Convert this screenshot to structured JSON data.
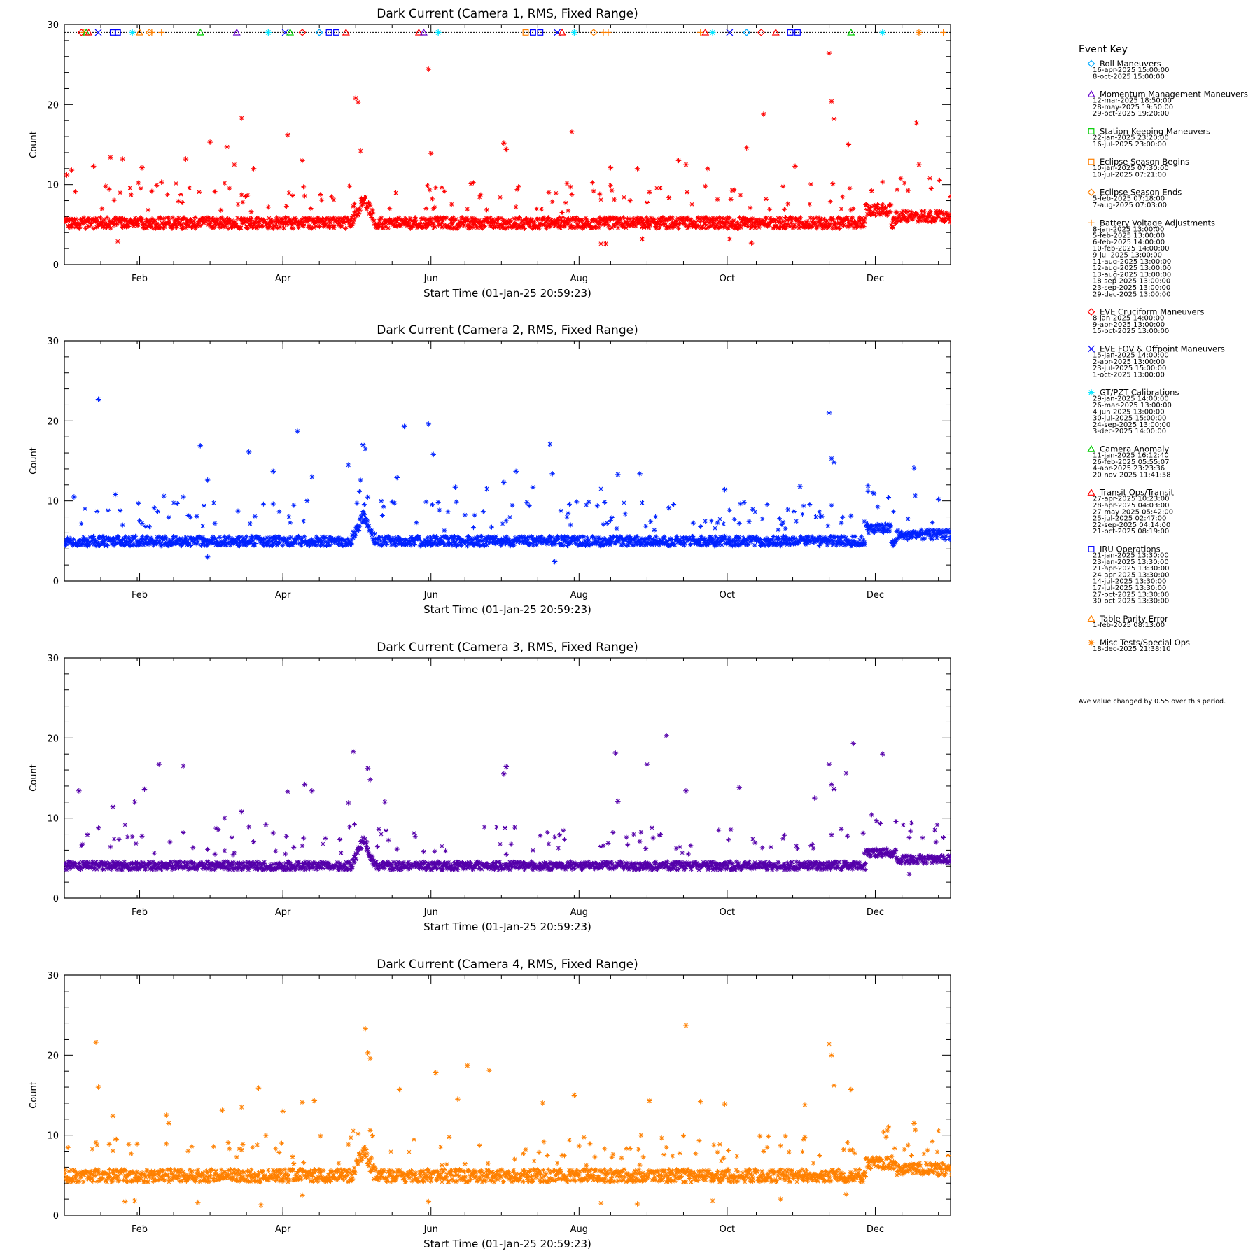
{
  "chart_data": {
    "type": "scatter",
    "x_range_days": [
      0,
      365
    ],
    "ylim": [
      0,
      30
    ],
    "yticks": [
      0,
      10,
      20,
      30
    ],
    "xticks": [
      {
        "label": "Feb",
        "day": 31
      },
      {
        "label": "Apr",
        "day": 90
      },
      {
        "label": "Jun",
        "day": 151
      },
      {
        "label": "Aug",
        "day": 212
      },
      {
        "label": "Oct",
        "day": 273
      },
      {
        "label": "Dec",
        "day": 334
      }
    ],
    "panels": [
      {
        "title": "Dark Current (Camera 1, RMS, Fixed Range)",
        "xlabel": "Start Time (01-Jan-25 20:59:23)",
        "ylabel": "Count",
        "color": "#ff0000",
        "baseline": 5.0,
        "spread": 0.7,
        "outliers": [
          [
            1,
            11.2
          ],
          [
            3,
            11.8
          ],
          [
            12,
            12.3
          ],
          [
            17,
            9.8
          ],
          [
            19,
            13.4
          ],
          [
            24,
            13.2
          ],
          [
            32,
            12.1
          ],
          [
            40,
            10.3
          ],
          [
            50,
            13.2
          ],
          [
            60,
            15.3
          ],
          [
            67,
            14.7
          ],
          [
            70,
            12.5
          ],
          [
            73,
            18.3
          ],
          [
            78,
            12.0
          ],
          [
            92,
            16.2
          ],
          [
            98,
            13.0
          ],
          [
            120,
            20.8
          ],
          [
            121,
            20.3
          ],
          [
            122,
            14.2
          ],
          [
            150,
            24.4
          ],
          [
            151,
            13.9
          ],
          [
            181,
            15.2
          ],
          [
            182,
            14.4
          ],
          [
            209,
            16.6
          ],
          [
            225,
            12.1
          ],
          [
            236,
            12.0
          ],
          [
            253,
            13.0
          ],
          [
            256,
            12.5
          ],
          [
            265,
            12.0
          ],
          [
            281,
            14.6
          ],
          [
            288,
            18.8
          ],
          [
            301,
            12.3
          ],
          [
            315,
            26.4
          ],
          [
            316,
            20.4
          ],
          [
            317,
            18.2
          ],
          [
            323,
            15.0
          ],
          [
            351,
            17.7
          ],
          [
            352,
            12.5
          ]
        ],
        "dips": [
          [
            22,
            2.9
          ],
          [
            221,
            2.6
          ],
          [
            223,
            2.6
          ],
          [
            238,
            3.2
          ],
          [
            274,
            3.2
          ],
          [
            283,
            2.7
          ]
        ],
        "bump_days": [
          118,
          128
        ],
        "late_bump_days": [
          330,
          340
        ]
      },
      {
        "title": "Dark Current (Camera 2, RMS, Fixed Range)",
        "xlabel": "Start Time (01-Jan-25 20:59:23)",
        "ylabel": "Count",
        "color": "#0022ff",
        "baseline": 4.8,
        "spread": 0.6,
        "outliers": [
          [
            4,
            10.5
          ],
          [
            14,
            22.7
          ],
          [
            21,
            10.8
          ],
          [
            41,
            10.6
          ],
          [
            49,
            10.5
          ],
          [
            56,
            16.9
          ],
          [
            59,
            12.6
          ],
          [
            76,
            16.1
          ],
          [
            86,
            13.7
          ],
          [
            96,
            18.7
          ],
          [
            102,
            13.0
          ],
          [
            117,
            14.5
          ],
          [
            123,
            17.0
          ],
          [
            124,
            16.5
          ],
          [
            137,
            12.9
          ],
          [
            140,
            19.3
          ],
          [
            150,
            19.6
          ],
          [
            152,
            15.8
          ],
          [
            161,
            11.7
          ],
          [
            174,
            11.5
          ],
          [
            181,
            12.3
          ],
          [
            186,
            13.7
          ],
          [
            193,
            11.7
          ],
          [
            200,
            17.1
          ],
          [
            201,
            13.4
          ],
          [
            221,
            11.5
          ],
          [
            228,
            13.3
          ],
          [
            237,
            13.4
          ],
          [
            272,
            11.4
          ],
          [
            303,
            11.8
          ],
          [
            315,
            21.0
          ],
          [
            316,
            15.3
          ],
          [
            317,
            14.8
          ],
          [
            331,
            11.9
          ],
          [
            350,
            14.1
          ],
          [
            360,
            10.2
          ]
        ],
        "dips": [
          [
            59,
            3.0
          ],
          [
            202,
            2.4
          ]
        ],
        "bump_days": [
          118,
          128
        ],
        "late_bump_days": [
          330,
          340
        ]
      },
      {
        "title": "Dark Current (Camera 3, RMS, Fixed Range)",
        "xlabel": "Start Time (01-Jan-25 20:59:23)",
        "ylabel": "Count",
        "color": "#5500aa",
        "baseline": 3.9,
        "spread": 0.5,
        "outliers": [
          [
            6,
            13.4
          ],
          [
            20,
            11.4
          ],
          [
            29,
            12.0
          ],
          [
            33,
            13.6
          ],
          [
            39,
            16.7
          ],
          [
            49,
            16.5
          ],
          [
            66,
            10.0
          ],
          [
            73,
            10.8
          ],
          [
            83,
            9.2
          ],
          [
            92,
            13.3
          ],
          [
            99,
            14.2
          ],
          [
            102,
            13.4
          ],
          [
            117,
            11.9
          ],
          [
            119,
            18.3
          ],
          [
            125,
            16.2
          ],
          [
            126,
            14.8
          ],
          [
            132,
            12.0
          ],
          [
            181,
            15.5
          ],
          [
            182,
            16.4
          ],
          [
            227,
            18.1
          ],
          [
            228,
            12.1
          ],
          [
            240,
            16.7
          ],
          [
            248,
            20.3
          ],
          [
            256,
            13.4
          ],
          [
            278,
            13.8
          ],
          [
            309,
            12.5
          ],
          [
            315,
            16.7
          ],
          [
            316,
            14.2
          ],
          [
            317,
            13.6
          ],
          [
            322,
            15.6
          ],
          [
            325,
            19.3
          ],
          [
            337,
            18.0
          ]
        ],
        "dips": [
          [
            348,
            3.0
          ]
        ],
        "bump_days": [
          118,
          128
        ],
        "late_bump_days": [
          330,
          342
        ]
      },
      {
        "title": "Dark Current (Camera 4, RMS, Fixed Range)",
        "xlabel": "Start Time (01-Jan-25 20:59:23)",
        "ylabel": "Count",
        "color": "#ff8000",
        "baseline": 4.7,
        "spread": 0.8,
        "outliers": [
          [
            13,
            21.6
          ],
          [
            14,
            16.0
          ],
          [
            20,
            12.4
          ],
          [
            42,
            12.5
          ],
          [
            43,
            11.5
          ],
          [
            65,
            13.1
          ],
          [
            73,
            13.5
          ],
          [
            80,
            15.9
          ],
          [
            90,
            13.0
          ],
          [
            98,
            14.1
          ],
          [
            103,
            14.3
          ],
          [
            124,
            23.3
          ],
          [
            125,
            20.3
          ],
          [
            126,
            19.6
          ],
          [
            138,
            15.7
          ],
          [
            153,
            17.8
          ],
          [
            162,
            14.5
          ],
          [
            166,
            18.7
          ],
          [
            175,
            18.1
          ],
          [
            197,
            14.0
          ],
          [
            210,
            15.0
          ],
          [
            241,
            14.3
          ],
          [
            256,
            23.7
          ],
          [
            262,
            14.2
          ],
          [
            272,
            13.9
          ],
          [
            305,
            13.8
          ],
          [
            315,
            21.4
          ],
          [
            316,
            20.0
          ],
          [
            317,
            16.2
          ],
          [
            324,
            15.7
          ],
          [
            350,
            11.5
          ]
        ],
        "dips": [
          [
            25,
            1.7
          ],
          [
            29,
            1.8
          ],
          [
            55,
            1.6
          ],
          [
            81,
            1.3
          ],
          [
            98,
            2.5
          ],
          [
            150,
            1.7
          ],
          [
            221,
            1.5
          ],
          [
            236,
            1.4
          ],
          [
            267,
            1.8
          ],
          [
            295,
            2.0
          ],
          [
            322,
            2.6
          ]
        ],
        "bump_days": [
          118,
          128
        ],
        "late_bump_days": [
          330,
          342
        ]
      }
    ],
    "events_row_y": 29,
    "events_on_top_panel": [
      {
        "day": 7,
        "sym": "diamond",
        "color": "#ff0000"
      },
      {
        "day": 8,
        "sym": "cross",
        "color": "#ff8000"
      },
      {
        "day": 9,
        "sym": "triangle",
        "color": "#00cc00"
      },
      {
        "day": 10,
        "sym": "triangle",
        "color": "#ff0000"
      },
      {
        "day": 14,
        "sym": "x",
        "color": "#0000ff"
      },
      {
        "day": 20,
        "sym": "square",
        "color": "#0000ff"
      },
      {
        "day": 22,
        "sym": "square",
        "color": "#0000ff"
      },
      {
        "day": 28,
        "sym": "asterisk",
        "color": "#00e5ff"
      },
      {
        "day": 31,
        "sym": "triangle",
        "color": "#ff8000"
      },
      {
        "day": 35,
        "sym": "diamond",
        "color": "#ff8000"
      },
      {
        "day": 36,
        "sym": "cross",
        "color": "#ff8000"
      },
      {
        "day": 40,
        "sym": "cross",
        "color": "#ff8000"
      },
      {
        "day": 56,
        "sym": "triangle",
        "color": "#00cc00"
      },
      {
        "day": 71,
        "sym": "triangle",
        "color": "#6600cc"
      },
      {
        "day": 84,
        "sym": "asterisk",
        "color": "#00e5ff"
      },
      {
        "day": 91,
        "sym": "x",
        "color": "#0000ff"
      },
      {
        "day": 93,
        "sym": "triangle",
        "color": "#00cc00"
      },
      {
        "day": 98,
        "sym": "diamond",
        "color": "#ff0000"
      },
      {
        "day": 105,
        "sym": "diamond",
        "color": "#00aaff"
      },
      {
        "day": 109,
        "sym": "square",
        "color": "#0000ff"
      },
      {
        "day": 112,
        "sym": "square",
        "color": "#0000ff"
      },
      {
        "day": 116,
        "sym": "triangle",
        "color": "#ff0000"
      },
      {
        "day": 146,
        "sym": "triangle",
        "color": "#ff0000"
      },
      {
        "day": 148,
        "sym": "triangle",
        "color": "#6600cc"
      },
      {
        "day": 154,
        "sym": "asterisk",
        "color": "#00e5ff"
      },
      {
        "day": 190,
        "sym": "square",
        "color": "#ff8000"
      },
      {
        "day": 193,
        "sym": "square",
        "color": "#0000ff"
      },
      {
        "day": 196,
        "sym": "square",
        "color": "#0000ff"
      },
      {
        "day": 203,
        "sym": "x",
        "color": "#0000ff"
      },
      {
        "day": 205,
        "sym": "triangle",
        "color": "#ff0000"
      },
      {
        "day": 210,
        "sym": "asterisk",
        "color": "#00e5ff"
      },
      {
        "day": 218,
        "sym": "diamond",
        "color": "#ff8000"
      },
      {
        "day": 222,
        "sym": "cross",
        "color": "#ff8000"
      },
      {
        "day": 224,
        "sym": "cross",
        "color": "#ff8000"
      },
      {
        "day": 262,
        "sym": "cross",
        "color": "#ff8000"
      },
      {
        "day": 264,
        "sym": "triangle",
        "color": "#ff0000"
      },
      {
        "day": 267,
        "sym": "asterisk",
        "color": "#00e5ff"
      },
      {
        "day": 274,
        "sym": "x",
        "color": "#0000ff"
      },
      {
        "day": 281,
        "sym": "diamond",
        "color": "#00aaff"
      },
      {
        "day": 287,
        "sym": "diamond",
        "color": "#ff0000"
      },
      {
        "day": 293,
        "sym": "triangle",
        "color": "#ff0000"
      },
      {
        "day": 299,
        "sym": "square",
        "color": "#0000ff"
      },
      {
        "day": 302,
        "sym": "square",
        "color": "#0000ff"
      },
      {
        "day": 324,
        "sym": "triangle",
        "color": "#00cc00"
      },
      {
        "day": 337,
        "sym": "asterisk",
        "color": "#00e5ff"
      },
      {
        "day": 352,
        "sym": "asterisk",
        "color": "#ff8000"
      },
      {
        "day": 362,
        "sym": "cross",
        "color": "#ff8000"
      }
    ]
  },
  "event_key": {
    "title": "Event Key",
    "entries": [
      {
        "label": "Roll Maneuvers",
        "sym": "diamond",
        "color": "#00aaff",
        "dates": [
          "16-apr-2025 15:00:00",
          "8-oct-2025 15:00:00"
        ]
      },
      {
        "label": "Momentum Management Maneuvers",
        "sym": "triangle",
        "color": "#6600cc",
        "dates": [
          "12-mar-2025 18:50:00",
          "28-may-2025 19:50:00",
          "29-oct-2025 19:20:00"
        ]
      },
      {
        "label": "Station-Keeping Maneuvers",
        "sym": "square",
        "color": "#00cc00",
        "dates": [
          "22-jan-2025 23:20:00",
          "16-jul-2025 23:00:00"
        ]
      },
      {
        "label": "Eclipse Season Begins",
        "sym": "square",
        "color": "#ff8000",
        "dates": [
          "10-jan-2025 07:30:00",
          "10-jul-2025 07:21:00"
        ]
      },
      {
        "label": "Eclipse Season Ends",
        "sym": "diamond",
        "color": "#ff8000",
        "dates": [
          "5-feb-2025 07:18:00",
          "7-aug-2025 07:03:00"
        ]
      },
      {
        "label": "Battery Voltage Adjustments",
        "sym": "cross",
        "color": "#ff8000",
        "dates": [
          "8-jan-2025 13:00:00",
          "5-feb-2025 13:00:00",
          "6-feb-2025 14:00:00",
          "10-feb-2025 14:00:00",
          "9-jul-2025 13:00:00",
          "11-aug-2025 13:00:00",
          "12-aug-2025 13:00:00",
          "13-aug-2025 13:00:00",
          "18-sep-2025 13:00:00",
          "23-sep-2025 13:00:00",
          "29-dec-2025 13:00:00"
        ]
      },
      {
        "label": "EVE Cruciform Maneuvers",
        "sym": "diamond",
        "color": "#ff0000",
        "dates": [
          "8-jan-2025 14:00:00",
          "9-apr-2025 13:00:00",
          "15-oct-2025 13:00:00"
        ]
      },
      {
        "label": "EVE FOV & Offpoint Maneuvers",
        "sym": "x",
        "color": "#0000ff",
        "dates": [
          "15-jan-2025 14:00:00",
          "2-apr-2025 13:00:00",
          "23-jul-2025 15:00:00",
          "1-oct-2025 13:00:00"
        ]
      },
      {
        "label": "GT/PZT Calibrations",
        "sym": "asterisk",
        "color": "#00e5ff",
        "dates": [
          "29-jan-2025 14:00:00",
          "26-mar-2025 13:00:00",
          "4-jun-2025 13:00:00",
          "30-jul-2025 15:00:00",
          "24-sep-2025 13:00:00",
          "3-dec-2025 14:00:00"
        ]
      },
      {
        "label": "Camera Anomaly",
        "sym": "triangle",
        "color": "#00cc00",
        "dates": [
          "11-jan-2025 16:12:40",
          "26-feb-2025 05:55:07",
          "4-apr-2025 23:23:36",
          "20-nov-2025 11:41:58"
        ]
      },
      {
        "label": "Transit Ops/Transit",
        "sym": "triangle",
        "color": "#ff0000",
        "dates": [
          "27-apr-2025 10:23:00",
          "28-apr-2025 04:03:00",
          "27-may-2025 05:42:00",
          "25-jul-2025 02:47:00",
          "22-sep-2025 04:14:00",
          "21-oct-2025 08:19:00"
        ]
      },
      {
        "label": "IRU Operations",
        "sym": "square",
        "color": "#0000ff",
        "dates": [
          "21-jan-2025 13:30:00",
          "23-jan-2025 13:30:00",
          "21-apr-2025 13:30:00",
          "24-apr-2025 13:30:00",
          "14-jul-2025 13:30:00",
          "17-jul-2025 13:30:00",
          "27-oct-2025 13:30:00",
          "30-oct-2025 13:30:00"
        ]
      },
      {
        "label": "Table Parity Error",
        "sym": "triangle",
        "color": "#ff8000",
        "dates": [
          "1-feb-2025 08:13:00"
        ]
      },
      {
        "label": "Misc Tests/Special Ops",
        "sym": "asterisk",
        "color": "#ff8000",
        "dates": [
          "18-dec-2025 21:38:10"
        ]
      }
    ],
    "note": "Ave value changed by 0.55 over this period."
  }
}
